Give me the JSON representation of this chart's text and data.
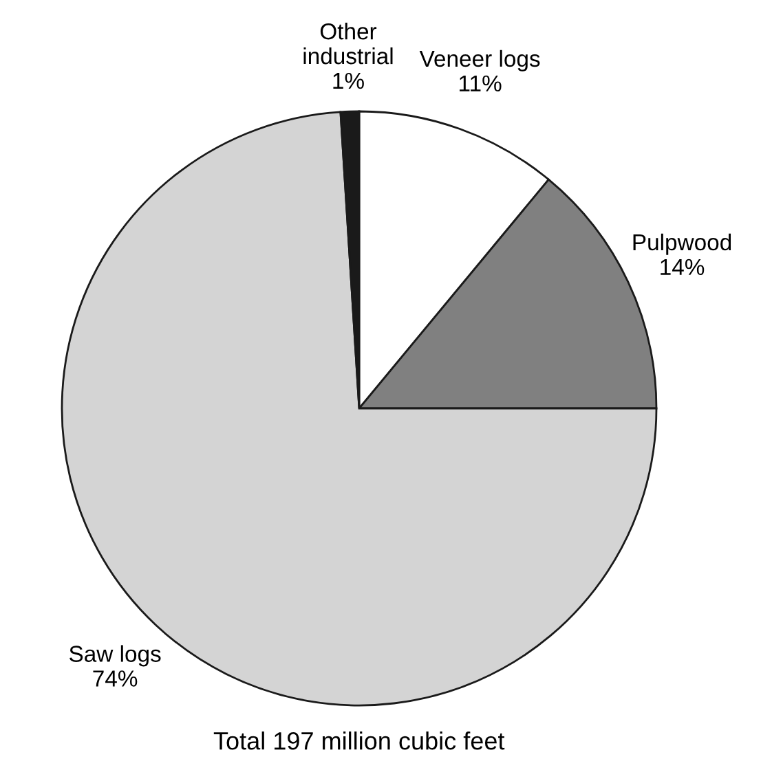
{
  "chart_data": {
    "type": "pie",
    "categories": [
      "Veneer logs",
      "Pulpwood",
      "Saw logs",
      "Other\nindustrial"
    ],
    "values": [
      11,
      14,
      74,
      1
    ],
    "colors": [
      "#ffffff",
      "#808080",
      "#d4d4d4",
      "#1a1a1a"
    ],
    "value_labels": [
      "11%",
      "14%",
      "74%",
      "1%"
    ],
    "annotations": [
      "Total 197 million cubic feet"
    ],
    "legend": false
  }
}
